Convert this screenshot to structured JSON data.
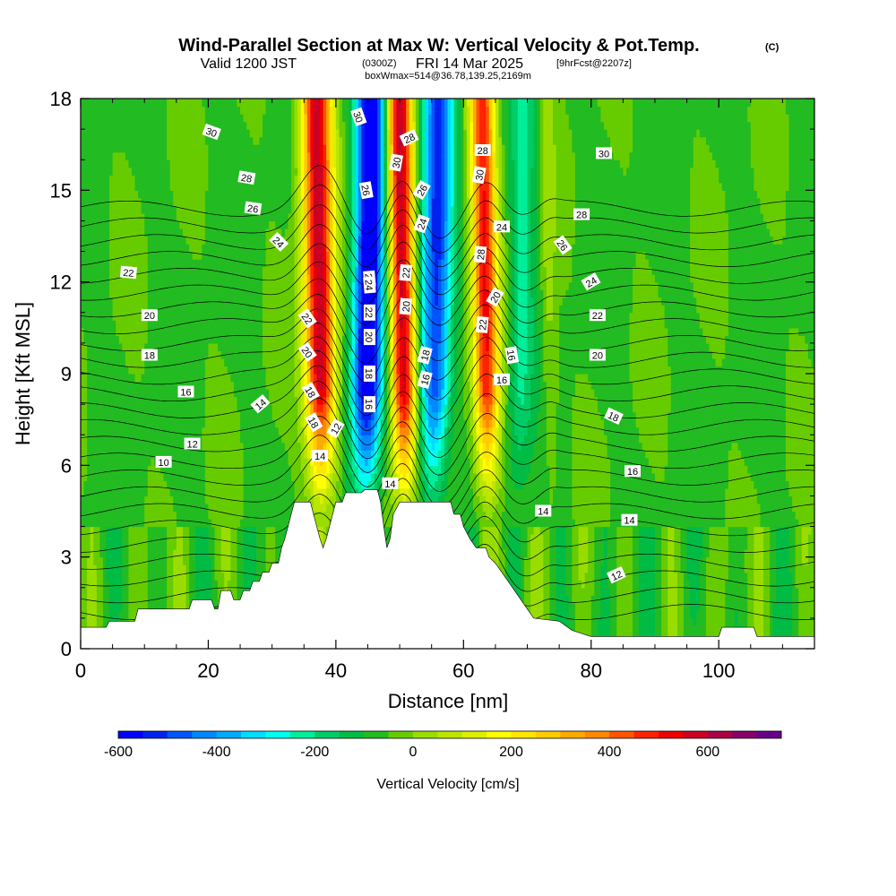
{
  "header": {
    "title": "Wind-Parallel Section at Max W: Vertical Velocity & Pot.Temp.",
    "copyright": "(C)",
    "valid_prefix": "Valid 1200 JST",
    "valid_utc": "(0300Z)",
    "valid_date": "FRI 14 Mar 2025",
    "forecast": "[9hrFcst@2207z]",
    "box_info": "boxWmax=514@36.78,139.25,2169m"
  },
  "chart_data": {
    "type": "heatmap",
    "title": "Wind-Parallel Section at Max W: Vertical Velocity & Pot.Temp.",
    "xlabel": "Distance [nm]",
    "ylabel": "Height [Kft MSL]",
    "xlim": [
      0,
      115
    ],
    "ylim": [
      0,
      18
    ],
    "x_ticks": [
      "0",
      "20",
      "40",
      "60",
      "80",
      "100"
    ],
    "y_ticks": [
      "0",
      "3",
      "6",
      "9",
      "12",
      "15",
      "18"
    ],
    "colorbar": {
      "label": "Vertical Velocity [cm/s]",
      "range": [
        -600,
        750
      ],
      "step": 50,
      "tick_labels": [
        "-600",
        "-400",
        "-200",
        "0",
        "200",
        "400",
        "600"
      ],
      "colors": [
        "#0000ff",
        "#0022ee",
        "#0055ff",
        "#0088ff",
        "#00aaff",
        "#00ddff",
        "#00ffee",
        "#00ee99",
        "#00cc66",
        "#00bb44",
        "#22bb22",
        "#66cc00",
        "#99dd00",
        "#bbe600",
        "#ddf000",
        "#ffff00",
        "#ffe600",
        "#ffcc00",
        "#ffaa00",
        "#ff8800",
        "#ff5500",
        "#ff2200",
        "#ee0000",
        "#cc0022",
        "#aa0044",
        "#880066",
        "#660088"
      ]
    },
    "vertical_velocity_bands": [
      {
        "center_nm": 37.5,
        "width_nm": 3.0,
        "w_cms": 650
      },
      {
        "center_nm": 45.0,
        "width_nm": 3.0,
        "w_cms": -600
      },
      {
        "center_nm": 50.5,
        "width_nm": 2.5,
        "w_cms": 650
      },
      {
        "center_nm": 55.5,
        "width_nm": 3.0,
        "w_cms": -450
      },
      {
        "center_nm": 63.5,
        "width_nm": 2.5,
        "w_cms": 550
      },
      {
        "center_nm": 69.0,
        "width_nm": 2.5,
        "w_cms": -150
      },
      {
        "center_nm": 73.5,
        "width_nm": 1.5,
        "w_cms": 80
      }
    ],
    "terrain_kft": [
      {
        "x": 0,
        "h": 0.7
      },
      {
        "x": 4,
        "h": 0.7
      },
      {
        "x": 4.5,
        "h": 0.9
      },
      {
        "x": 8.5,
        "h": 0.9
      },
      {
        "x": 9,
        "h": 1.3
      },
      {
        "x": 17,
        "h": 1.3
      },
      {
        "x": 17.5,
        "h": 1.6
      },
      {
        "x": 20.5,
        "h": 1.6
      },
      {
        "x": 21,
        "h": 1.3
      },
      {
        "x": 21.5,
        "h": 1.3
      },
      {
        "x": 22,
        "h": 1.9
      },
      {
        "x": 23.5,
        "h": 1.9
      },
      {
        "x": 24,
        "h": 1.6
      },
      {
        "x": 25,
        "h": 1.6
      },
      {
        "x": 25.5,
        "h": 1.9
      },
      {
        "x": 26.5,
        "h": 1.9
      },
      {
        "x": 27,
        "h": 2.2
      },
      {
        "x": 28,
        "h": 2.2
      },
      {
        "x": 28.5,
        "h": 2.5
      },
      {
        "x": 29.5,
        "h": 2.5
      },
      {
        "x": 30,
        "h": 2.8
      },
      {
        "x": 31,
        "h": 2.8
      },
      {
        "x": 31.5,
        "h": 3.3
      },
      {
        "x": 32,
        "h": 3.6
      },
      {
        "x": 32.5,
        "h": 4.0
      },
      {
        "x": 33,
        "h": 4.4
      },
      {
        "x": 33.5,
        "h": 4.8
      },
      {
        "x": 36,
        "h": 4.8
      },
      {
        "x": 36.5,
        "h": 4.4
      },
      {
        "x": 37,
        "h": 4.0
      },
      {
        "x": 37.5,
        "h": 3.6
      },
      {
        "x": 38,
        "h": 3.3
      },
      {
        "x": 38.5,
        "h": 3.6
      },
      {
        "x": 39,
        "h": 4.0
      },
      {
        "x": 39.5,
        "h": 4.4
      },
      {
        "x": 40,
        "h": 4.8
      },
      {
        "x": 41,
        "h": 4.8
      },
      {
        "x": 41.5,
        "h": 5.1
      },
      {
        "x": 43.5,
        "h": 5.1
      },
      {
        "x": 44,
        "h": 5.1
      },
      {
        "x": 44.5,
        "h": 5.2
      },
      {
        "x": 46.5,
        "h": 5.2
      },
      {
        "x": 47,
        "h": 4.8
      },
      {
        "x": 47.5,
        "h": 4.0
      },
      {
        "x": 48,
        "h": 3.3
      },
      {
        "x": 48.5,
        "h": 3.6
      },
      {
        "x": 49,
        "h": 4.4
      },
      {
        "x": 50,
        "h": 4.8
      },
      {
        "x": 58,
        "h": 4.8
      },
      {
        "x": 58.5,
        "h": 4.4
      },
      {
        "x": 59.5,
        "h": 4.4
      },
      {
        "x": 60,
        "h": 4.0
      },
      {
        "x": 61,
        "h": 3.6
      },
      {
        "x": 62,
        "h": 3.3
      },
      {
        "x": 63.5,
        "h": 3.3
      },
      {
        "x": 64,
        "h": 3.0
      },
      {
        "x": 65,
        "h": 2.8
      },
      {
        "x": 66,
        "h": 2.5
      },
      {
        "x": 67,
        "h": 2.2
      },
      {
        "x": 68,
        "h": 1.9
      },
      {
        "x": 69,
        "h": 1.6
      },
      {
        "x": 70,
        "h": 1.3
      },
      {
        "x": 71,
        "h": 1.0
      },
      {
        "x": 75,
        "h": 0.9
      },
      {
        "x": 77,
        "h": 0.6
      },
      {
        "x": 80,
        "h": 0.4
      },
      {
        "x": 100,
        "h": 0.4
      },
      {
        "x": 100.5,
        "h": 0.7
      },
      {
        "x": 105.5,
        "h": 0.7
      },
      {
        "x": 106,
        "h": 0.4
      },
      {
        "x": 115,
        "h": 0.4
      }
    ],
    "theta_contour_labels": [
      {
        "text": "30",
        "x": 20.5,
        "y": 16.9,
        "rot": 20
      },
      {
        "text": "28",
        "x": 26,
        "y": 15.4,
        "rot": 10
      },
      {
        "text": "26",
        "x": 27,
        "y": 14.4,
        "rot": 8
      },
      {
        "text": "24",
        "x": 31,
        "y": 13.3,
        "rot": 45
      },
      {
        "text": "22",
        "x": 7.5,
        "y": 12.3,
        "rot": 5
      },
      {
        "text": "20",
        "x": 10.8,
        "y": 10.9,
        "rot": 0
      },
      {
        "text": "18",
        "x": 10.8,
        "y": 9.6,
        "rot": 0
      },
      {
        "text": "16",
        "x": 16.5,
        "y": 8.4,
        "rot": 0
      },
      {
        "text": "14",
        "x": 28.2,
        "y": 8.0,
        "rot": -40
      },
      {
        "text": "12",
        "x": 17.5,
        "y": 6.7,
        "rot": 0
      },
      {
        "text": "10",
        "x": 13,
        "y": 6.1,
        "rot": 0
      },
      {
        "text": "22",
        "x": 35.5,
        "y": 10.8,
        "rot": 55
      },
      {
        "text": "20",
        "x": 35.5,
        "y": 9.7,
        "rot": 55
      },
      {
        "text": "18",
        "x": 36,
        "y": 8.4,
        "rot": 60
      },
      {
        "text": "18",
        "x": 36.5,
        "y": 7.4,
        "rot": 60
      },
      {
        "text": "14",
        "x": 37.5,
        "y": 6.3,
        "rot": 0
      },
      {
        "text": "12",
        "x": 40,
        "y": 7.2,
        "rot": -60
      },
      {
        "text": "30",
        "x": 43.5,
        "y": 17.4,
        "rot": 70
      },
      {
        "text": "26",
        "x": 44.7,
        "y": 15.0,
        "rot": 80
      },
      {
        "text": "26",
        "x": 45.2,
        "y": 12.1,
        "rot": 85
      },
      {
        "text": "24",
        "x": 45.2,
        "y": 11.9,
        "rot": 85
      },
      {
        "text": "22",
        "x": 45.2,
        "y": 11.0,
        "rot": 90
      },
      {
        "text": "20",
        "x": 45.2,
        "y": 10.2,
        "rot": 90
      },
      {
        "text": "18",
        "x": 45.2,
        "y": 9.0,
        "rot": 90
      },
      {
        "text": "16",
        "x": 45.2,
        "y": 8.0,
        "rot": 90
      },
      {
        "text": "14",
        "x": 48.5,
        "y": 5.4,
        "rot": 0
      },
      {
        "text": "28",
        "x": 51.5,
        "y": 16.7,
        "rot": -25
      },
      {
        "text": "30",
        "x": 49.5,
        "y": 15.9,
        "rot": -80
      },
      {
        "text": "22",
        "x": 51,
        "y": 12.3,
        "rot": -85
      },
      {
        "text": "20",
        "x": 51,
        "y": 11.2,
        "rot": -85
      },
      {
        "text": "26",
        "x": 53.5,
        "y": 15.0,
        "rot": -60
      },
      {
        "text": "24",
        "x": 53.5,
        "y": 13.9,
        "rot": -70
      },
      {
        "text": "18",
        "x": 54,
        "y": 9.6,
        "rot": -75
      },
      {
        "text": "16",
        "x": 54,
        "y": 8.8,
        "rot": -75
      },
      {
        "text": "30",
        "x": 62.5,
        "y": 15.5,
        "rot": -80
      },
      {
        "text": "28",
        "x": 63,
        "y": 16.3,
        "rot": 0
      },
      {
        "text": "28",
        "x": 62.7,
        "y": 12.9,
        "rot": -85
      },
      {
        "text": "24",
        "x": 66,
        "y": 13.8,
        "rot": 0
      },
      {
        "text": "20",
        "x": 65,
        "y": 11.5,
        "rot": -60
      },
      {
        "text": "22",
        "x": 63,
        "y": 10.6,
        "rot": -85
      },
      {
        "text": "16",
        "x": 67.5,
        "y": 9.6,
        "rot": 80
      },
      {
        "text": "16",
        "x": 66,
        "y": 8.8,
        "rot": 0
      },
      {
        "text": "30",
        "x": 82,
        "y": 16.2,
        "rot": 0
      },
      {
        "text": "28",
        "x": 78.5,
        "y": 14.2,
        "rot": 0
      },
      {
        "text": "26",
        "x": 75.5,
        "y": 13.2,
        "rot": 55
      },
      {
        "text": "24",
        "x": 80,
        "y": 12.0,
        "rot": -30
      },
      {
        "text": "22",
        "x": 81,
        "y": 10.9,
        "rot": 0
      },
      {
        "text": "20",
        "x": 81,
        "y": 9.6,
        "rot": 0
      },
      {
        "text": "18",
        "x": 83.5,
        "y": 7.6,
        "rot": 25
      },
      {
        "text": "16",
        "x": 86.5,
        "y": 5.8,
        "rot": 0
      },
      {
        "text": "14",
        "x": 72.5,
        "y": 4.5,
        "rot": 0
      },
      {
        "text": "14",
        "x": 86,
        "y": 4.2,
        "rot": 0
      },
      {
        "text": "12",
        "x": 84,
        "y": 2.4,
        "rot": -25
      }
    ]
  }
}
